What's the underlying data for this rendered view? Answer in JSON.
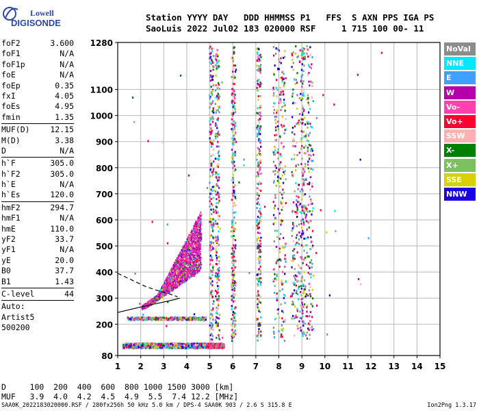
{
  "logo": {
    "line1": "Lowell",
    "line2": "DIGISONDE"
  },
  "header": {
    "labels_line": "Station YYYY DAY   DDD HHMMSS P1   FFS  S AXN PPS IGA PS",
    "values_line": "SaoLuis 2022 Jul02 183 020000 RSF     1 715 100 00- 11"
  },
  "params": {
    "group1": [
      {
        "name": "foF2",
        "value": "3.600"
      },
      {
        "name": "foF1",
        "value": "N/A"
      },
      {
        "name": "foF1p",
        "value": "N/A"
      },
      {
        "name": "foE",
        "value": "N/A"
      },
      {
        "name": "foEp",
        "value": "0.35"
      },
      {
        "name": "fxI",
        "value": "4.05"
      },
      {
        "name": "foEs",
        "value": "4.95"
      },
      {
        "name": "fmin",
        "value": "1.35"
      }
    ],
    "group2": [
      {
        "name": "MUF(D)",
        "value": "12.15"
      },
      {
        "name": "M(D)",
        "value": "3.38"
      },
      {
        "name": "D",
        "value": "N/A"
      }
    ],
    "group3": [
      {
        "name": "h`F",
        "value": "305.0"
      },
      {
        "name": "h`F2",
        "value": "305.0"
      },
      {
        "name": "h`E",
        "value": "N/A"
      },
      {
        "name": "h`Es",
        "value": "120.0"
      }
    ],
    "group4": [
      {
        "name": "hmF2",
        "value": "294.7"
      },
      {
        "name": "hmF1",
        "value": "N/A"
      },
      {
        "name": "hmE",
        "value": "110.0"
      },
      {
        "name": "yF2",
        "value": "33.7"
      },
      {
        "name": "yF1",
        "value": "N/A"
      },
      {
        "name": "yE",
        "value": "20.0"
      },
      {
        "name": "B0",
        "value": "37.7"
      },
      {
        "name": "B1",
        "value": "1.43"
      }
    ],
    "group5": [
      {
        "name": "C-level",
        "value": "44"
      }
    ],
    "notes": [
      "Auto:",
      "Artist5",
      "500200"
    ]
  },
  "legend": [
    {
      "label": "NoVal",
      "color": "#8c8c8c"
    },
    {
      "label": "NNE",
      "color": "#00e8ff"
    },
    {
      "label": "E",
      "color": "#3fa0ff"
    },
    {
      "label": "W",
      "color": "#b400a8"
    },
    {
      "label": "Vo-",
      "color": "#ff40b0"
    },
    {
      "label": "Vo+",
      "color": "#ff0030"
    },
    {
      "label": "SSW",
      "color": "#ffb0b0"
    },
    {
      "label": "X-",
      "color": "#008000"
    },
    {
      "label": "X+",
      "color": "#7cc060"
    },
    {
      "label": "SSE",
      "color": "#d8d000"
    },
    {
      "label": "NNW",
      "color": "#1a00e0"
    }
  ],
  "muf_table": {
    "d_line": "D     100  200  400  600  800 1000 1500 3000 [km]",
    "muf_line": "MUF   3.9  4.0  4.2  4.5  4.9  5.5  7.4 12.2 [MHz]"
  },
  "footer": {
    "left": "SAA0K_2022183020000.RSF / 280fx256h 50 kHz 5.0 km / DPS-4 SAA0K 903 / 2.6 S 315.8 E",
    "right": "Ion2Png 1.3.17"
  },
  "chart_data": {
    "type": "scatter",
    "title": "",
    "xlabel": "",
    "ylabel": "",
    "xlim": [
      1,
      15
    ],
    "ylim": [
      80,
      1280
    ],
    "xticks": [
      1,
      2,
      3,
      4,
      5,
      6,
      7,
      8,
      9,
      10,
      11,
      12,
      13,
      14,
      15
    ],
    "yticks": [
      80,
      200,
      300,
      400,
      500,
      600,
      700,
      800,
      900,
      1000,
      1100,
      1280
    ],
    "grid": true,
    "gridlines_x": [
      2,
      3,
      4,
      5,
      6,
      7,
      8,
      9,
      10,
      11,
      12,
      13,
      14
    ],
    "gridlines_y": [
      200,
      300,
      400,
      500,
      600,
      700,
      800,
      900,
      1000,
      1100
    ],
    "traces": [
      {
        "name": "es_layer",
        "freq_range": [
          1.2,
          5.6
        ],
        "height": 120
      },
      {
        "name": "es_second_hop",
        "freq_range": [
          1.4,
          4.8
        ],
        "height": 225
      },
      {
        "name": "f_layer",
        "freq_range": [
          2.0,
          4.6
        ],
        "height_range": [
          300,
          560
        ]
      },
      {
        "name": "multi_hop_columns",
        "freqs": [
          5.05,
          5.3,
          6.0,
          7.1,
          8.0,
          8.8,
          9.2
        ],
        "height_range": [
          140,
          1270
        ]
      }
    ],
    "profile_curves": [
      {
        "style": "solid",
        "points": [
          [
            1.0,
            245
          ],
          [
            2.2,
            270
          ],
          [
            3.0,
            285
          ],
          [
            3.5,
            295
          ],
          [
            3.7,
            300
          ]
        ]
      },
      {
        "style": "dashed",
        "points": [
          [
            1.0,
            395
          ],
          [
            1.6,
            370
          ],
          [
            2.2,
            345
          ],
          [
            2.7,
            330
          ],
          [
            3.2,
            318
          ],
          [
            3.6,
            305
          ]
        ]
      }
    ]
  }
}
